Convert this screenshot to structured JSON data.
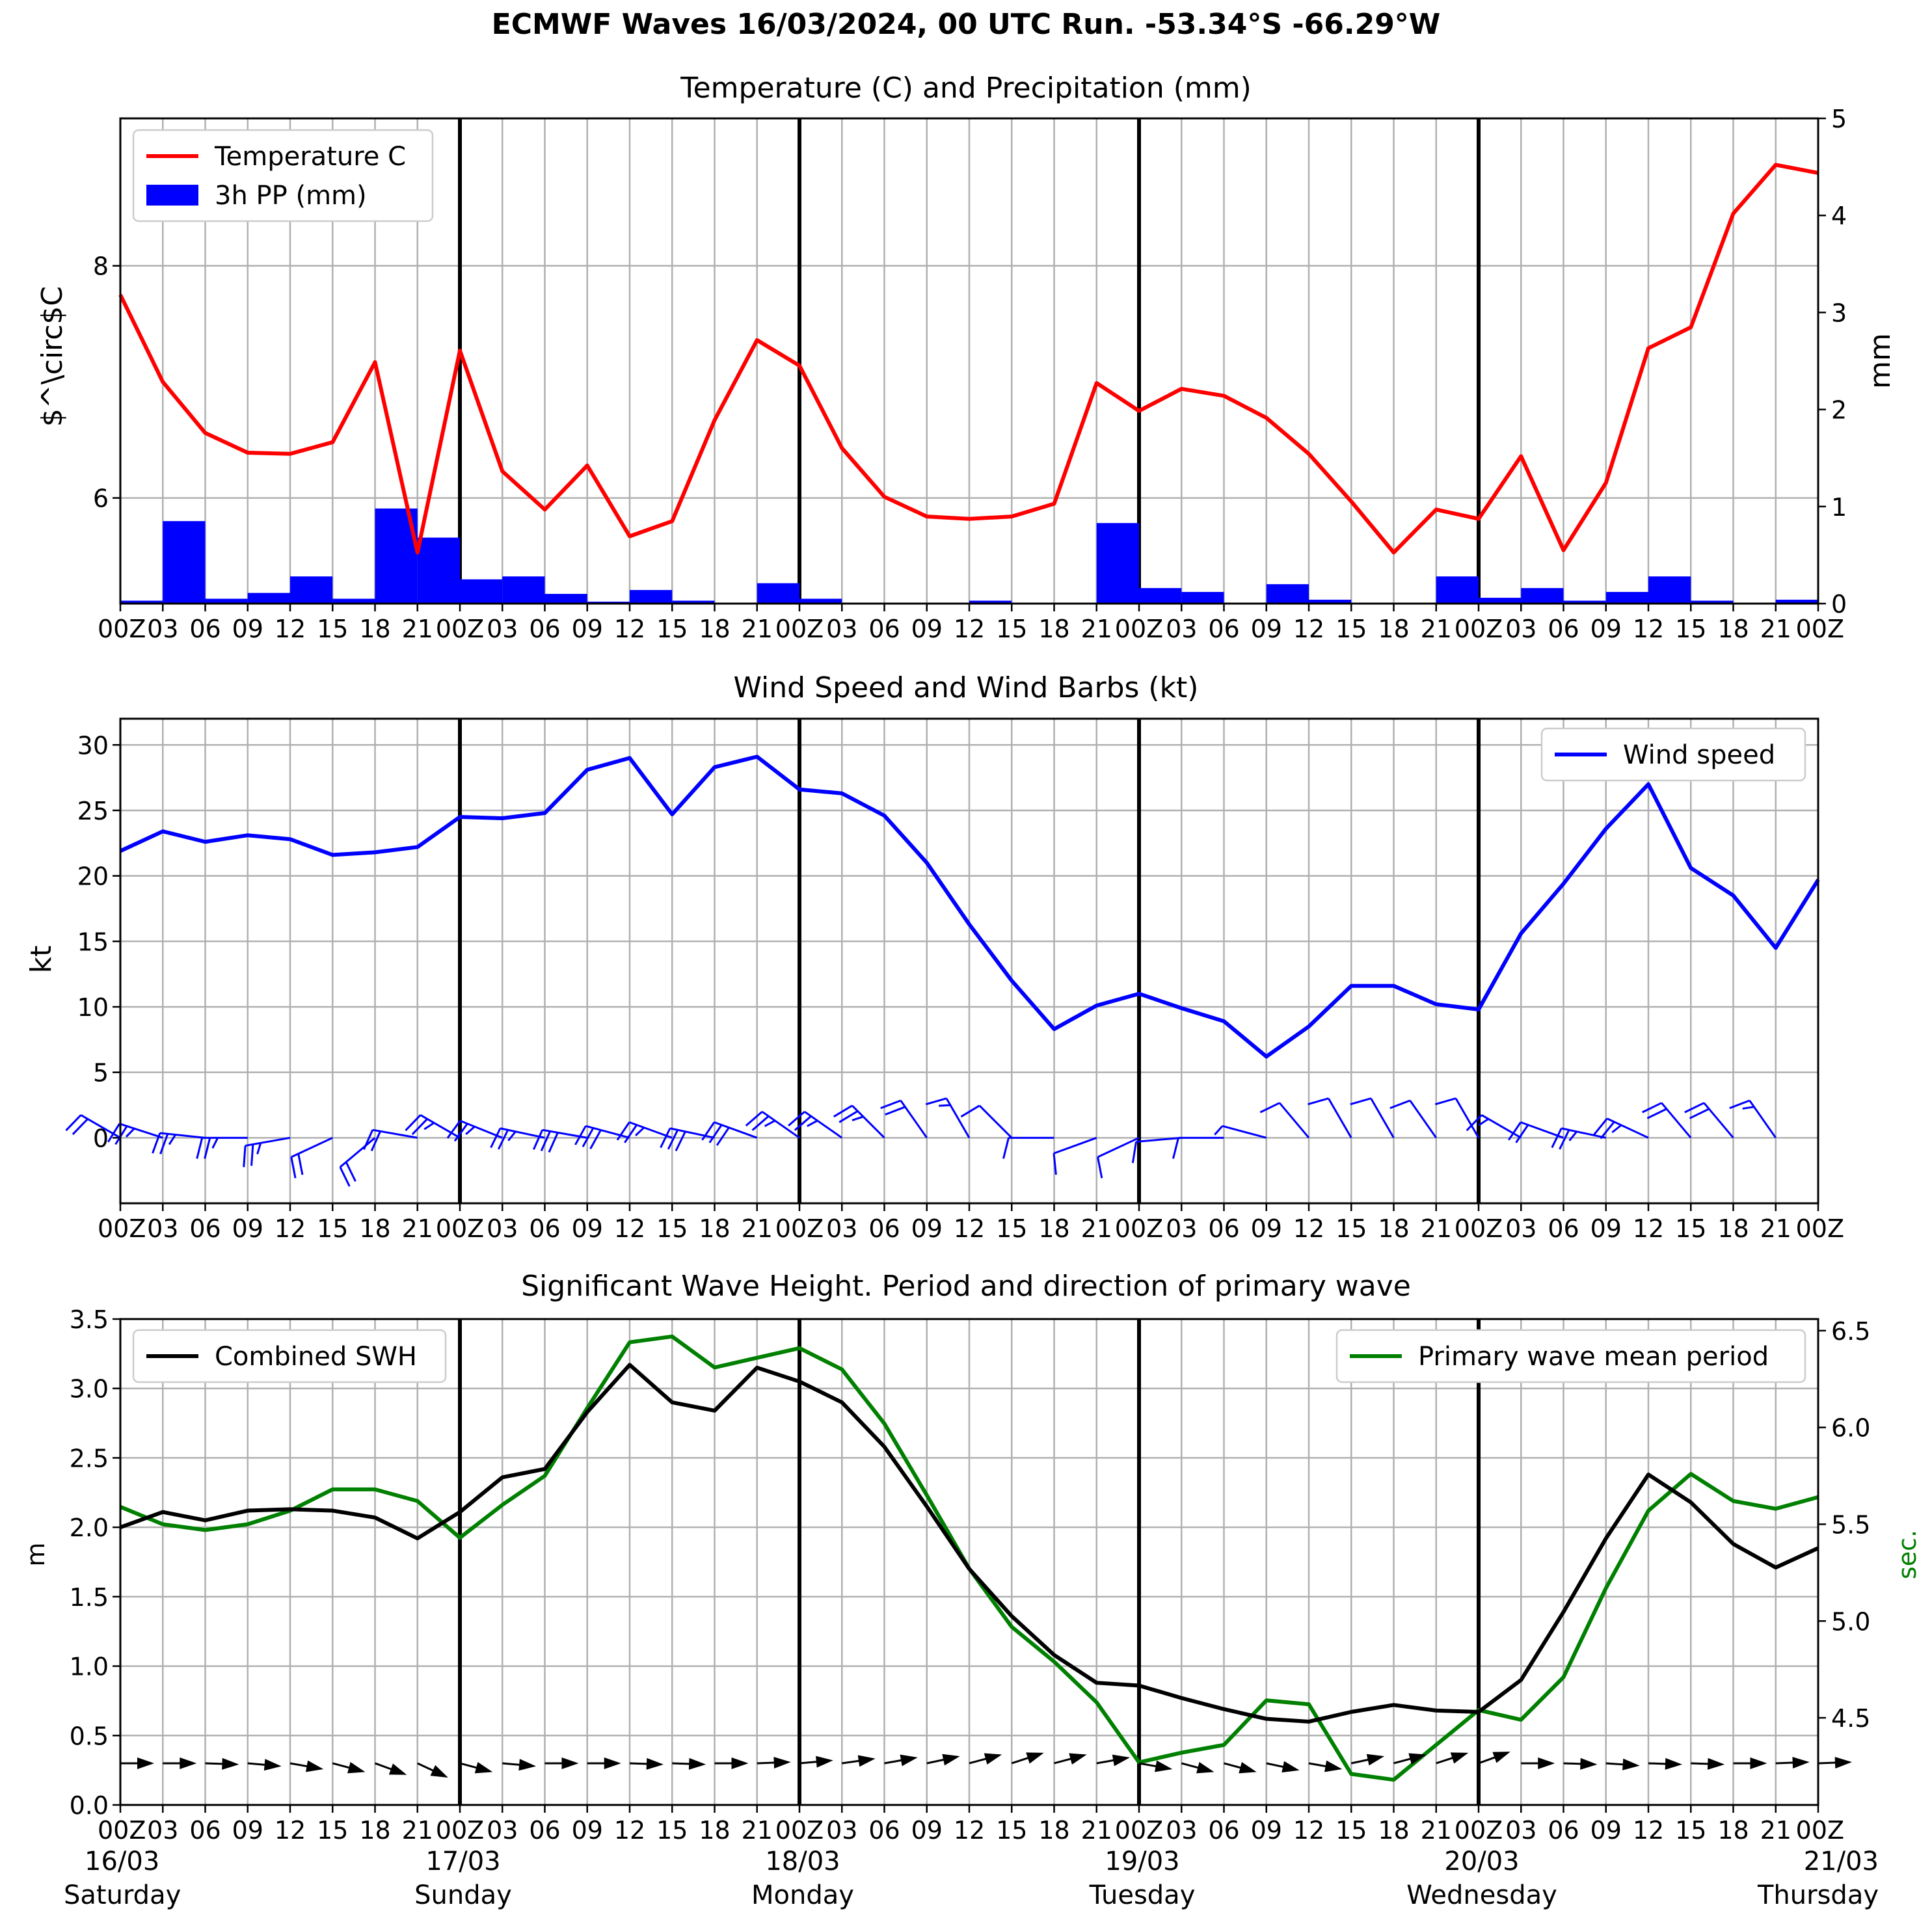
{
  "figure_title": "ECMWF Waves 16/03/2024, 00 UTC Run. -53.34°S -66.29°W",
  "x_tick_labels": [
    "00Z",
    "03",
    "06",
    "09",
    "12",
    "15",
    "18",
    "21",
    "00Z",
    "03",
    "06",
    "09",
    "12",
    "15",
    "18",
    "21",
    "00Z",
    "03",
    "06",
    "09",
    "12",
    "15",
    "18",
    "21",
    "00Z",
    "03",
    "06",
    "09",
    "12",
    "15",
    "18",
    "21",
    "00Z",
    "03",
    "06",
    "09",
    "12",
    "15",
    "18",
    "21",
    "00Z"
  ],
  "day_labels": [
    {
      "date": "16/03",
      "day": "Saturday"
    },
    {
      "date": "17/03",
      "day": "Sunday"
    },
    {
      "date": "18/03",
      "day": "Monday"
    },
    {
      "date": "19/03",
      "day": "Tuesday"
    },
    {
      "date": "20/03",
      "day": "Wednesday"
    },
    {
      "date": "21/03",
      "day": "Thursday"
    }
  ],
  "colors": {
    "temperature": "#ff0000",
    "precip": "#0000ff",
    "wind": "#0000ff",
    "swh": "#000000",
    "period": "#008000",
    "grid": "#b0b0b0"
  },
  "chart_data": [
    {
      "type": "line",
      "title": "Temperature (C) and Precipitation (mm)",
      "ylabel": "$^\\circ$C",
      "y2label": "mm",
      "ylim": [
        5.09,
        9.27
      ],
      "y2lim": [
        0,
        5
      ],
      "yticks": [
        6,
        8
      ],
      "y2ticks": [
        0,
        1,
        2,
        3,
        4,
        5
      ],
      "legend_position": "upper-left",
      "series": [
        {
          "name": "Temperature C",
          "axis": "left",
          "color": "#ff0000",
          "values": [
            7.75,
            7.0,
            6.56,
            6.39,
            6.38,
            6.48,
            7.17,
            5.53,
            7.27,
            6.23,
            5.9,
            6.28,
            5.67,
            5.8,
            6.67,
            7.36,
            7.14,
            6.43,
            6.01,
            5.84,
            5.82,
            5.84,
            5.95,
            6.99,
            6.75,
            6.94,
            6.88,
            6.69,
            6.38,
            5.97,
            5.53,
            5.9,
            5.82,
            6.36,
            5.55,
            6.13,
            7.29,
            7.47,
            8.45,
            8.87,
            8.8
          ]
        },
        {
          "name": "3h PP (mm)",
          "axis": "right",
          "type": "bar",
          "color": "#0000ff",
          "values": [
            0.03,
            0.85,
            0.05,
            0.11,
            0.28,
            0.05,
            0.98,
            0.68,
            0.25,
            0.28,
            0.1,
            0.02,
            0.14,
            0.03,
            0,
            0.21,
            0.05,
            0,
            0,
            0,
            0.03,
            0,
            0,
            0.83,
            0.16,
            0.12,
            0,
            0.2,
            0.04,
            0,
            0,
            0.28,
            0.06,
            0.16,
            0.03,
            0.12,
            0.28,
            0.03,
            0,
            0.04
          ]
        }
      ]
    },
    {
      "type": "line",
      "title": "Wind Speed and Wind Barbs (kt)",
      "ylabel": "kt",
      "ylim": [
        -5,
        32
      ],
      "yticks": [
        0,
        5,
        10,
        15,
        20,
        25,
        30
      ],
      "legend_position": "upper-right",
      "series": [
        {
          "name": "Wind speed",
          "color": "#0000ff",
          "values": [
            21.9,
            23.4,
            22.6,
            23.1,
            22.8,
            21.6,
            21.8,
            22.2,
            24.5,
            24.4,
            24.8,
            28.1,
            29.0,
            24.7,
            28.3,
            29.1,
            26.6,
            26.3,
            24.6,
            21.0,
            16.3,
            12.0,
            8.3,
            10.1,
            11.0,
            9.9,
            8.9,
            6.2,
            8.5,
            11.6,
            11.6,
            10.2,
            9.8,
            15.6,
            19.4,
            23.6,
            27.0,
            20.6,
            18.5,
            14.5,
            19.7
          ]
        },
        {
          "name": "Wind barbs",
          "type": "barbs",
          "color": "#0000ff",
          "from_deg": [
            300,
            288,
            276,
            270,
            260,
            245,
            230,
            280,
            300,
            292,
            282,
            280,
            285,
            290,
            282,
            290,
            305,
            305,
            315,
            325,
            330,
            315,
            270,
            250,
            245,
            265,
            270,
            285,
            320,
            330,
            330,
            325,
            330,
            300,
            290,
            282,
            295,
            320,
            320,
            325,
            330
          ]
        }
      ]
    },
    {
      "type": "line",
      "title": "Significant Wave Height. Period and direction of primary wave",
      "ylabel": "m",
      "y2label": "sec.",
      "ylim": [
        0,
        3.5
      ],
      "y2lim": [
        4.05,
        6.56
      ],
      "yticks": [
        0.0,
        0.5,
        1.0,
        1.5,
        2.0,
        2.5,
        3.0,
        3.5
      ],
      "y2ticks": [
        4.5,
        5.0,
        5.5,
        6.0,
        6.5
      ],
      "legend_left": "upper-left",
      "legend_right": "upper-right",
      "series": [
        {
          "name": "Combined SWH",
          "axis": "left",
          "color": "#000000",
          "values": [
            2.0,
            2.11,
            2.05,
            2.12,
            2.13,
            2.12,
            2.07,
            1.92,
            2.11,
            2.36,
            2.42,
            2.83,
            3.17,
            2.9,
            2.84,
            3.15,
            3.05,
            2.9,
            2.58,
            2.15,
            1.7,
            1.36,
            1.08,
            0.88,
            0.86,
            0.77,
            0.69,
            0.62,
            0.6,
            0.67,
            0.72,
            0.68,
            0.67,
            0.9,
            1.39,
            1.92,
            2.38,
            2.18,
            1.88,
            1.71,
            1.85
          ]
        },
        {
          "name": "Primary wave mean period",
          "axis": "right",
          "color": "#008000",
          "values": [
            5.59,
            5.5,
            5.47,
            5.5,
            5.57,
            5.68,
            5.68,
            5.62,
            5.43,
            5.6,
            5.75,
            6.1,
            6.44,
            6.47,
            6.31,
            6.36,
            6.41,
            6.3,
            6.02,
            5.65,
            5.27,
            4.97,
            4.79,
            4.58,
            4.27,
            4.32,
            4.36,
            4.59,
            4.57,
            4.21,
            4.18,
            4.36,
            4.54,
            4.49,
            4.71,
            5.17,
            5.57,
            5.76,
            5.62,
            5.58,
            5.64
          ]
        },
        {
          "name": "Primary wave direction",
          "type": "arrows",
          "color": "#000000",
          "to_deg": [
            90,
            90,
            92,
            95,
            100,
            105,
            110,
            115,
            105,
            95,
            90,
            90,
            92,
            92,
            90,
            88,
            85,
            82,
            80,
            78,
            75,
            72,
            75,
            80,
            100,
            105,
            105,
            102,
            100,
            78,
            75,
            72,
            70,
            90,
            92,
            94,
            92,
            92,
            90,
            88,
            88
          ]
        }
      ]
    }
  ]
}
